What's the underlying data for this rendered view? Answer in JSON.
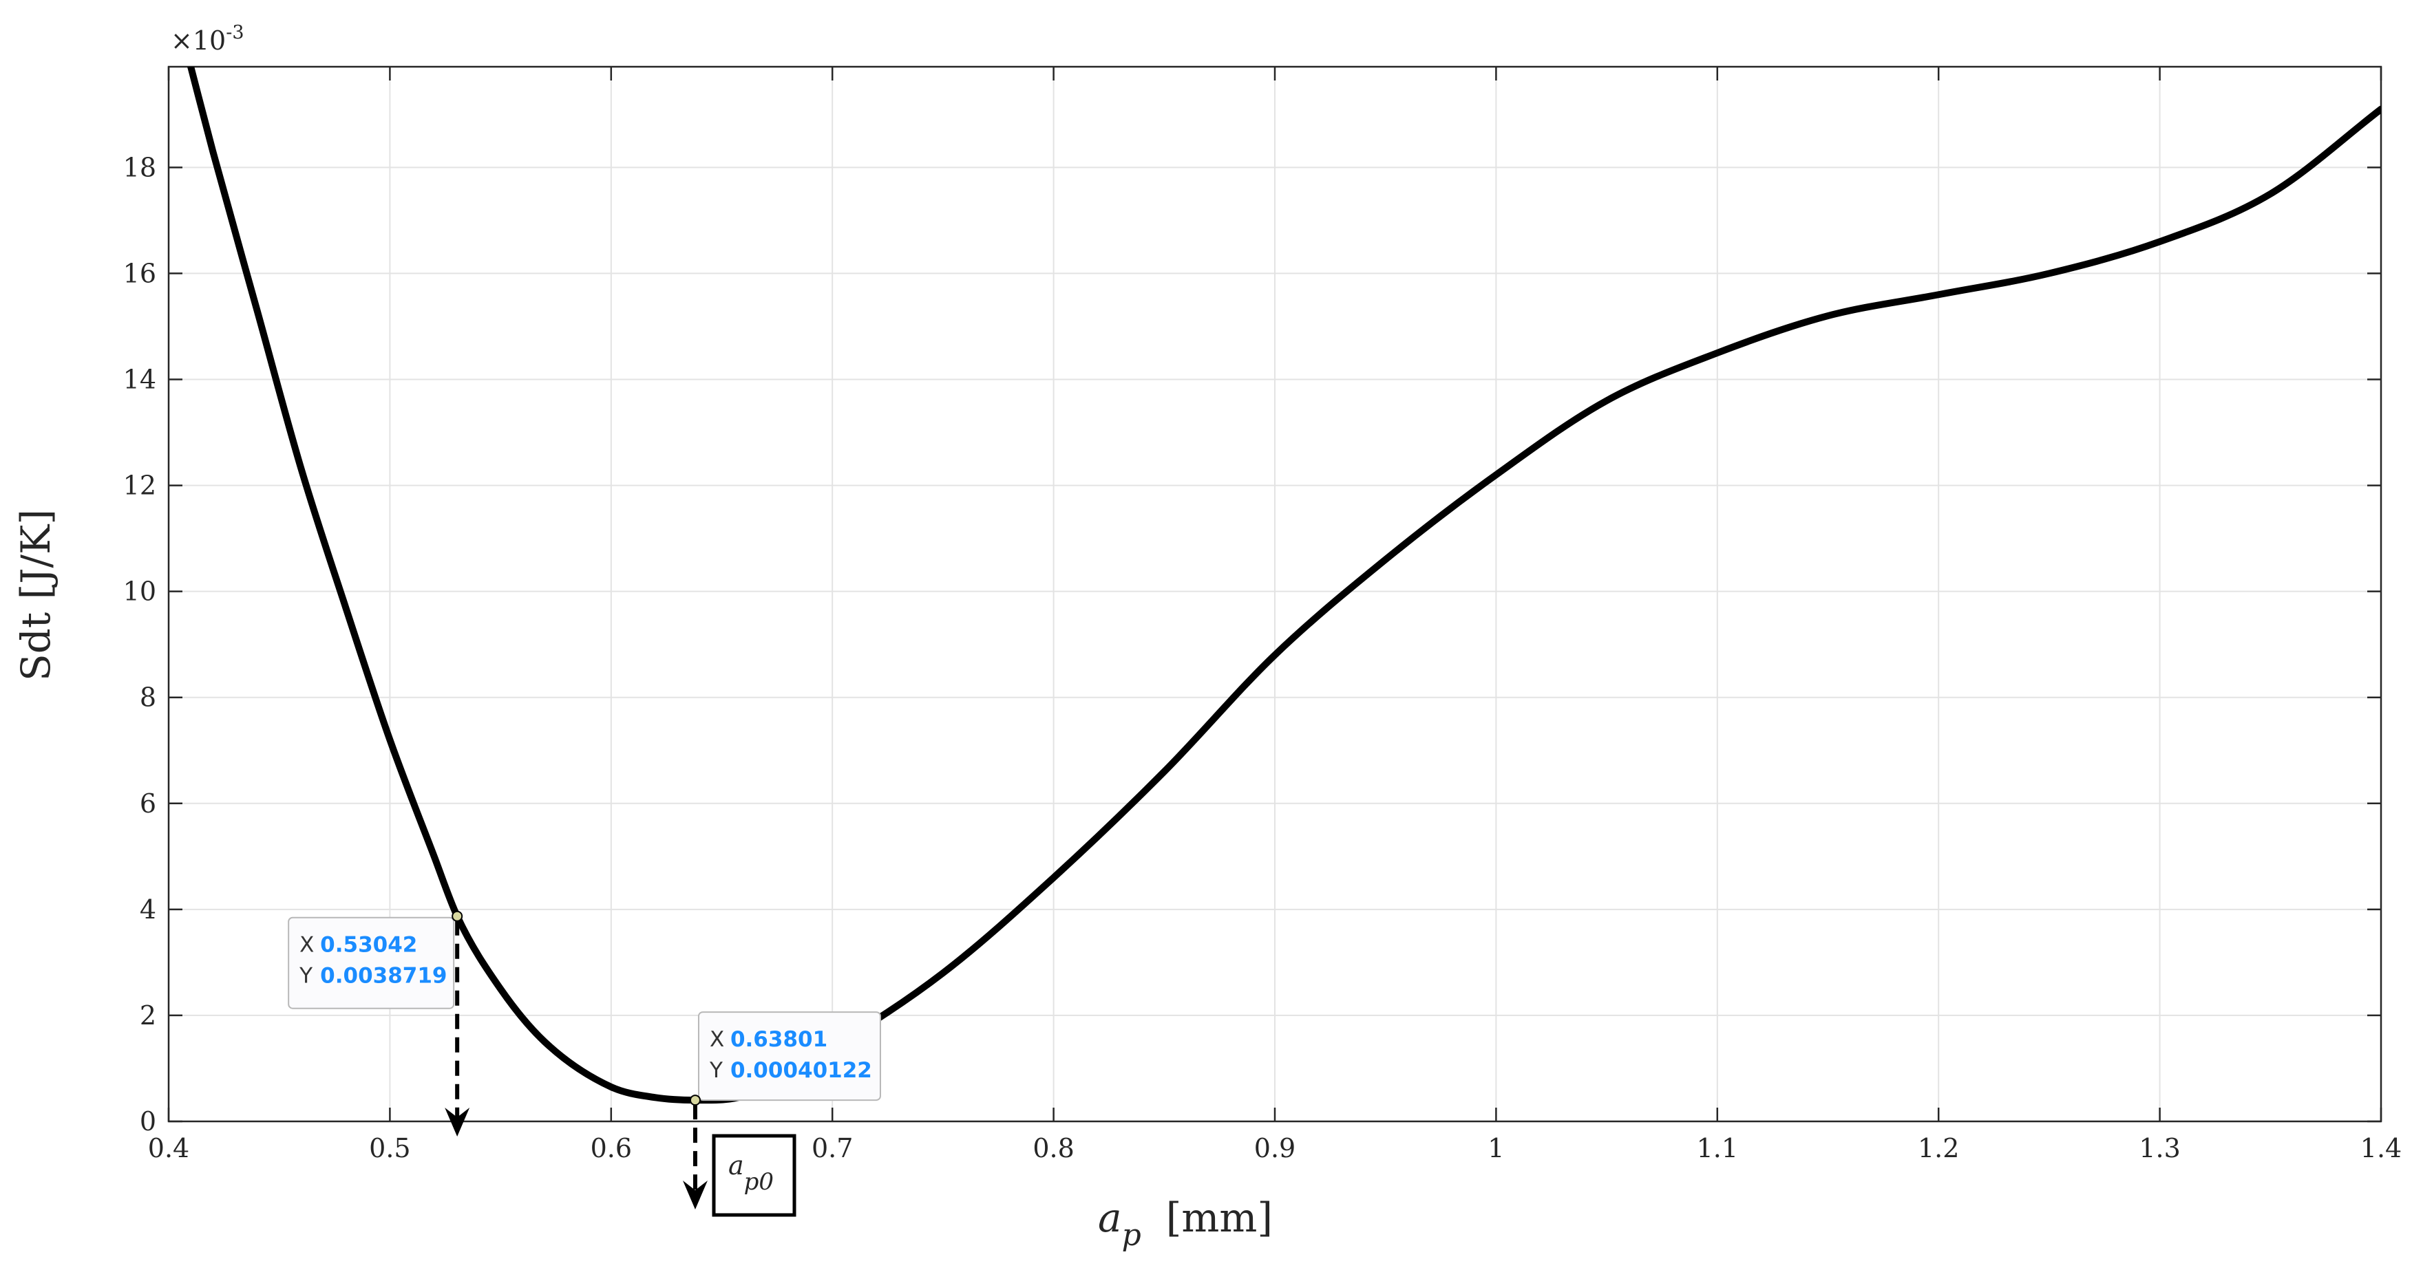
{
  "chart_data": {
    "type": "line",
    "xlabel_symbol": "a",
    "xlabel_subscript": "p",
    "xlabel_unit": "[mm]",
    "ylabel": "Sdt  [J/K]",
    "y_exponent_label": "×10",
    "y_exponent_power": "-3",
    "xlim": [
      0.4,
      1.4
    ],
    "ylim": [
      0,
      0.0199
    ],
    "grid": true,
    "x_ticks": [
      0.4,
      0.5,
      0.6,
      0.7,
      0.8,
      0.9,
      1,
      1.1,
      1.2,
      1.3,
      1.4
    ],
    "x_tick_labels": [
      "0.4",
      "0.5",
      "0.6",
      "0.7",
      "0.8",
      "0.9",
      "1",
      "1.1",
      "1.2",
      "1.3",
      "1.4"
    ],
    "y_ticks": [
      0,
      0.002,
      0.004,
      0.006,
      0.008,
      0.01,
      0.012,
      0.014,
      0.016,
      0.018
    ],
    "y_tick_labels": [
      "0",
      "2",
      "4",
      "6",
      "8",
      "10",
      "12",
      "14",
      "16",
      "18"
    ],
    "series": [
      {
        "x": [
          0.4,
          0.41,
          0.42,
          0.44,
          0.46,
          0.48,
          0.5,
          0.52,
          0.53042,
          0.55,
          0.57,
          0.6,
          0.62,
          0.63801,
          0.66,
          0.7,
          0.75,
          0.8,
          0.85,
          0.9,
          0.95,
          1.0,
          1.05,
          1.1,
          1.15,
          1.2,
          1.25,
          1.3,
          1.35,
          1.4
        ],
        "y": [
          0.0215,
          0.0199,
          0.0183,
          0.0153,
          0.0123,
          0.0097,
          0.0072,
          0.005,
          0.0038719,
          0.0025,
          0.0015,
          0.00065,
          0.00045,
          0.00040122,
          0.00048,
          0.0014,
          0.0028,
          0.0046,
          0.0066,
          0.0088,
          0.0106,
          0.0122,
          0.0136,
          0.0145,
          0.0152,
          0.0156,
          0.016,
          0.0166,
          0.0175,
          0.0191
        ],
        "color": "#000000"
      }
    ],
    "datatips": [
      {
        "x_label": "X",
        "y_label": "Y",
        "x_text": "0.53042",
        "y_text": "0.0038719",
        "x": 0.53042,
        "y": 0.0038719
      },
      {
        "x_label": "X",
        "y_label": "Y",
        "x_text": "0.63801",
        "y_text": "0.00040122",
        "x": 0.63801,
        "y": 0.00040122
      }
    ],
    "annotation_symbol": "a",
    "annotation_subscript": "p0",
    "value_color": "#1a8cff",
    "line_color": "#000000",
    "grid_color": "#e3e3e3"
  }
}
